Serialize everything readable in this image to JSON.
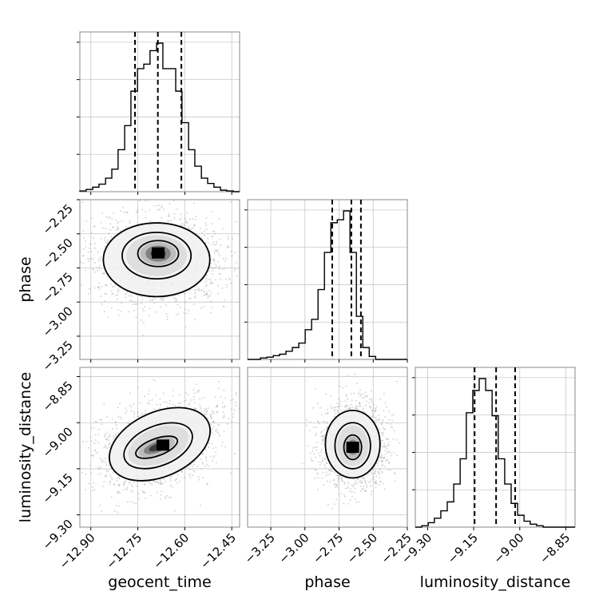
{
  "chart_data": {
    "type": "corner",
    "parameters": [
      "geocent_time",
      "phase",
      "luminosity_distance"
    ],
    "axis_labels": {
      "x": [
        "geocent_time",
        "phase",
        "luminosity_distance"
      ],
      "y": [
        "phase",
        "luminosity_distance"
      ]
    },
    "ranges": {
      "geocent_time": [
        -12.935,
        -12.425
      ],
      "phase": [
        -3.42,
        -2.25
      ],
      "luminosity_distance": [
        -9.34,
        -8.82
      ]
    },
    "ticks": {
      "geocent_time": [
        "-12.90",
        "-12.75",
        "-12.60",
        "-12.45"
      ],
      "phase": [
        "-3.25",
        "-3.00",
        "-2.75",
        "-2.50",
        "-2.25"
      ],
      "luminosity_distance": [
        "-9.30",
        "-9.15",
        "-9.00",
        "-8.85"
      ]
    },
    "grid": true,
    "marginals": [
      {
        "parameter": "geocent_time",
        "bin_edges": [
          -12.935,
          -12.915,
          -12.894,
          -12.874,
          -12.853,
          -12.833,
          -12.813,
          -12.792,
          -12.772,
          -12.751,
          -12.731,
          -12.711,
          -12.69,
          -12.67,
          -12.649,
          -12.629,
          -12.609,
          -12.588,
          -12.568,
          -12.547,
          -12.527,
          -12.507,
          -12.486,
          -12.466,
          -12.445,
          -12.425
        ],
        "heights": [
          0.005,
          0.015,
          0.03,
          0.05,
          0.09,
          0.15,
          0.28,
          0.44,
          0.67,
          0.82,
          0.85,
          0.94,
          0.99,
          0.82,
          0.82,
          0.67,
          0.46,
          0.28,
          0.17,
          0.09,
          0.055,
          0.03,
          0.01,
          0.005,
          0.0
        ],
        "quantiles": [
          -12.759,
          -12.686,
          -12.611
        ]
      },
      {
        "parameter": "phase",
        "bin_edges": [
          -3.42,
          -3.373,
          -3.326,
          -3.279,
          -3.232,
          -3.186,
          -3.139,
          -3.092,
          -3.045,
          -2.998,
          -2.951,
          -2.904,
          -2.857,
          -2.81,
          -2.763,
          -2.717,
          -2.67,
          -2.623,
          -2.576,
          -2.529,
          -2.482,
          -2.435,
          -2.388,
          -2.341,
          -2.294,
          -2.25
        ],
        "heights": [
          0.0,
          0.0,
          0.01,
          0.015,
          0.025,
          0.035,
          0.055,
          0.08,
          0.11,
          0.2,
          0.27,
          0.47,
          0.72,
          0.92,
          0.94,
          1.0,
          0.72,
          0.29,
          0.08,
          0.02,
          0.0,
          0.0,
          0.0,
          0.0,
          0.0
        ],
        "quantiles": [
          -2.8,
          -2.66,
          -2.59
        ]
      },
      {
        "parameter": "luminosity_distance",
        "bin_edges": [
          -9.34,
          -9.319,
          -9.298,
          -9.278,
          -9.257,
          -9.236,
          -9.215,
          -9.194,
          -9.174,
          -9.153,
          -9.132,
          -9.111,
          -9.09,
          -9.07,
          -9.049,
          -9.028,
          -9.007,
          -8.986,
          -8.966,
          -8.945,
          -8.924,
          -8.903,
          -8.882,
          -8.862,
          -8.841,
          -8.82
        ],
        "heights": [
          0.0,
          0.01,
          0.03,
          0.06,
          0.11,
          0.17,
          0.29,
          0.46,
          0.77,
          0.92,
          1.0,
          0.92,
          0.75,
          0.46,
          0.29,
          0.16,
          0.08,
          0.04,
          0.02,
          0.01,
          0.0,
          0.0,
          0.0,
          0.0,
          0.0
        ],
        "quantiles": [
          -9.147,
          -9.077,
          -9.015
        ]
      }
    ],
    "joint": [
      {
        "x": "geocent_time",
        "y": "phase",
        "mode": [
          -12.685,
          -2.64
        ],
        "contours": [
          {
            "cx": -12.685,
            "cy": -2.645,
            "rx": 0.065,
            "ry": 0.095,
            "rotation": 0
          },
          {
            "cx": -12.69,
            "cy": -2.66,
            "rx": 0.11,
            "ry": 0.17,
            "rotation": 0
          },
          {
            "cx": -12.69,
            "cy": -2.69,
            "rx": 0.17,
            "ry": 0.27,
            "rotation": 0
          }
        ]
      },
      {
        "x": "geocent_time",
        "y": "luminosity_distance",
        "mode": [
          -12.67,
          -9.073
        ],
        "contours": [
          {
            "cx": -12.69,
            "cy": -9.08,
            "rx": 0.07,
            "ry": 0.028,
            "rotation": -20
          },
          {
            "cx": -12.685,
            "cy": -9.075,
            "rx": 0.115,
            "ry": 0.065,
            "rotation": -22
          },
          {
            "cx": -12.68,
            "cy": -9.07,
            "rx": 0.17,
            "ry": 0.105,
            "rotation": -24
          }
        ]
      },
      {
        "x": "phase",
        "y": "luminosity_distance",
        "mode": [
          -2.65,
          -9.08
        ],
        "contours": [
          {
            "cx": -2.65,
            "cy": -9.08,
            "rx": 0.065,
            "ry": 0.04,
            "rotation": 0
          },
          {
            "cx": -2.65,
            "cy": -9.075,
            "rx": 0.13,
            "ry": 0.075,
            "rotation": 0
          },
          {
            "cx": -2.65,
            "cy": -9.07,
            "rx": 0.2,
            "ry": 0.11,
            "rotation": 0
          }
        ]
      }
    ]
  }
}
